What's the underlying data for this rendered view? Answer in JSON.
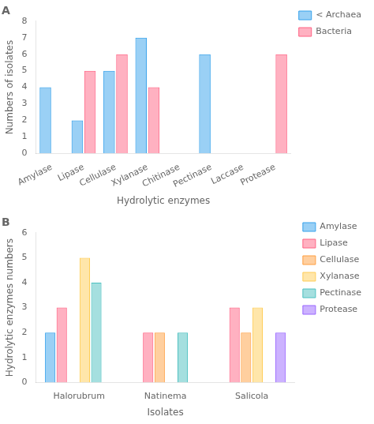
{
  "chart_data": [
    {
      "type": "bar",
      "title": "A",
      "categories": [
        "Amylase",
        "Lipase",
        "Cellulase",
        "Xylanase",
        "Chitinase",
        "Pectinase",
        "Laccase",
        "Protease"
      ],
      "series": [
        {
          "name": "< Archaea",
          "values": [
            4,
            2,
            5,
            7,
            0,
            6,
            0,
            0
          ]
        },
        {
          "name": "Bacteria",
          "values": [
            0,
            5,
            6,
            4,
            0,
            0,
            0,
            6
          ]
        }
      ],
      "x_label": "Hydrolytic enzymes",
      "y_label": "Numbers of isolates",
      "ylim": [
        0,
        8
      ],
      "yticks": [
        0,
        1,
        2,
        3,
        4,
        5,
        6,
        7,
        8
      ],
      "grid": false,
      "legend": "right"
    },
    {
      "type": "bar",
      "title": "B",
      "categories": [
        "Halorubrum",
        "Natinema",
        "Salicola"
      ],
      "series": [
        {
          "name": "Amylase",
          "values": [
            2,
            0,
            0
          ]
        },
        {
          "name": "Lipase",
          "values": [
            3,
            2,
            3
          ]
        },
        {
          "name": "Cellulase",
          "values": [
            0,
            2,
            2
          ]
        },
        {
          "name": "Xylanase",
          "values": [
            5,
            0,
            3
          ]
        },
        {
          "name": "Pectinase",
          "values": [
            4,
            2,
            0
          ]
        },
        {
          "name": "Protease",
          "values": [
            0,
            0,
            2
          ]
        }
      ],
      "x_label": "Isolates",
      "y_label": "Hydrolytic enzymes numbers",
      "ylim": [
        0,
        6
      ],
      "yticks": [
        0,
        1,
        2,
        3,
        4,
        5,
        6
      ],
      "grid": false,
      "legend": "right"
    }
  ]
}
